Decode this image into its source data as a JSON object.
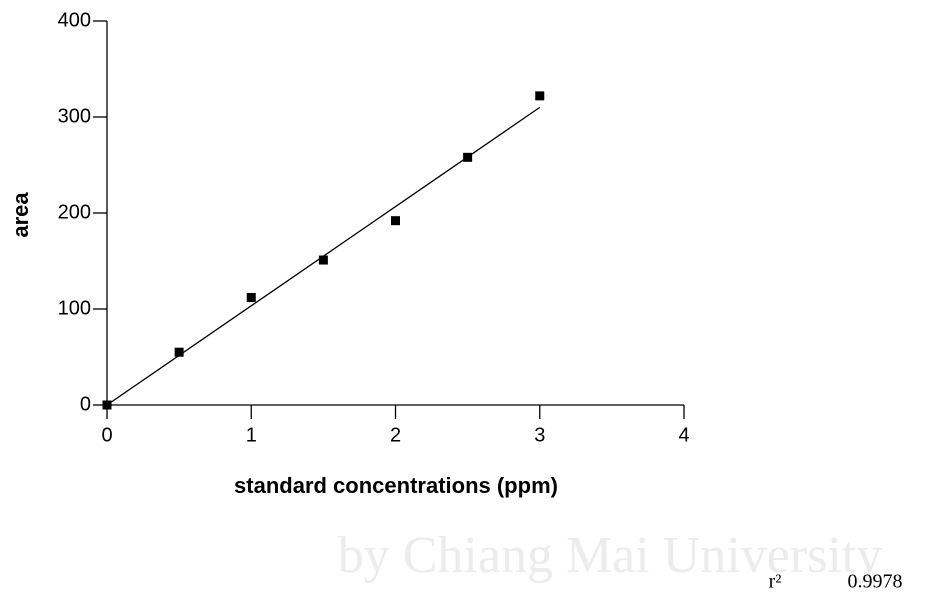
{
  "chart_data": {
    "type": "scatter",
    "x_label": "standard concentrations (ppm)",
    "y_label": "area",
    "x": [
      0,
      0.5,
      1,
      1.5,
      2,
      2.5,
      3
    ],
    "values": [
      0,
      55,
      112,
      151,
      192,
      258,
      322
    ],
    "color": "#000000",
    "fit": {
      "x": [
        0,
        3
      ],
      "values": [
        0,
        310
      ]
    },
    "xlim": [
      0,
      4
    ],
    "xticks": [
      0,
      1,
      2,
      3,
      4
    ],
    "ylim": [
      0,
      400
    ],
    "yticks": [
      0,
      100,
      200,
      300,
      400
    ],
    "annotations": [
      {
        "label": "r²",
        "value": 0.9978
      }
    ],
    "watermark": "by Chiang Mai University"
  }
}
